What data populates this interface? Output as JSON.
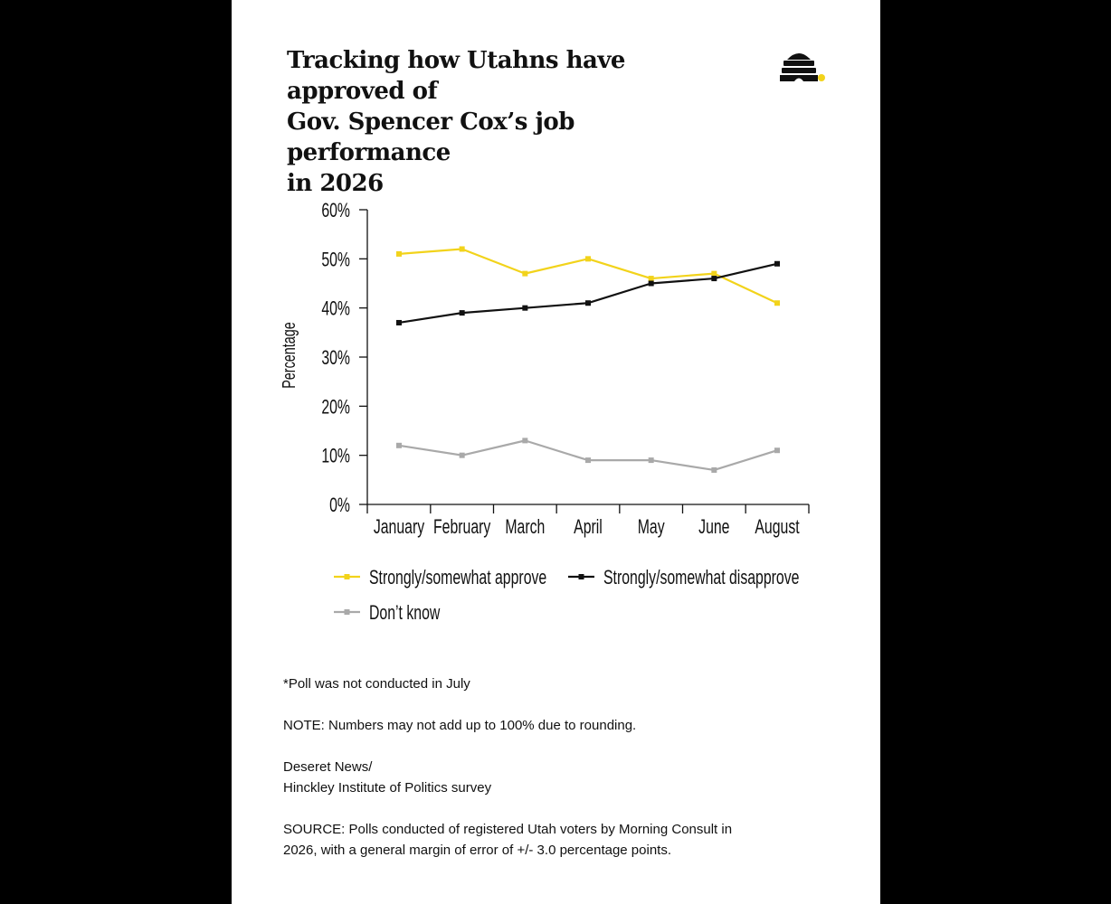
{
  "header": {
    "title_lines": [
      "Tracking how Utahns have approved of",
      "Gov. Spencer Cox’s job performance",
      "in 2026"
    ],
    "logo_icon": "beehive-icon"
  },
  "colors": {
    "approve": "#f2d31b",
    "disapprove": "#111111",
    "dont_know": "#a9a9a9",
    "accent_dot": "#f2d31b"
  },
  "chart_data": {
    "type": "line",
    "categories": [
      "January",
      "February",
      "March",
      "April",
      "May",
      "June",
      "August"
    ],
    "series": [
      {
        "name": "Strongly/somewhat approve",
        "values": [
          51,
          52,
          47,
          50,
          46,
          47,
          41
        ]
      },
      {
        "name": "Strongly/somewhat disapprove",
        "values": [
          37,
          39,
          40,
          41,
          45,
          46,
          49
        ]
      },
      {
        "name": "Don’t know",
        "values": [
          12,
          10,
          13,
          9,
          9,
          7,
          11
        ]
      }
    ],
    "ylabel": "Percentage",
    "ylim": [
      0,
      60
    ],
    "yticks": [
      "0%",
      "10%",
      "20%",
      "30%",
      "40%",
      "50%",
      "60%"
    ],
    "grid": false,
    "legend_position": "bottom"
  },
  "notes": {
    "footnote": "*Poll was not conducted in July",
    "note": "NOTE: Numbers may not add up to 100% due to rounding.",
    "credit_lines": [
      "Deseret News/",
      "Hinckley Institute of Politics survey"
    ],
    "source_lines": [
      "SOURCE: Polls conducted of registered Utah voters by Morning Consult in",
      "2026, with a general margin of error of +/- 3.0 percentage points."
    ]
  }
}
